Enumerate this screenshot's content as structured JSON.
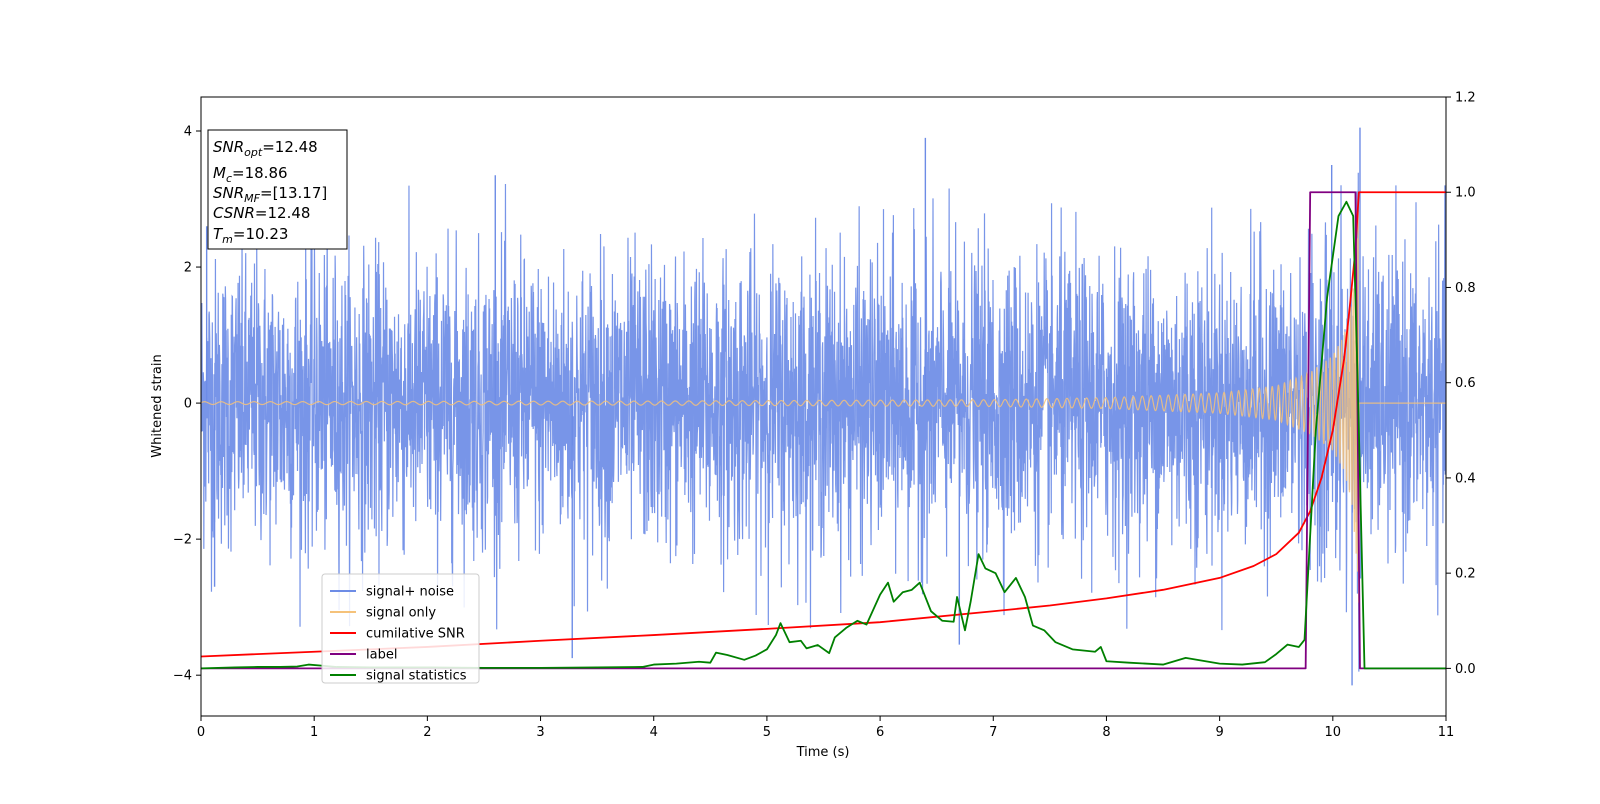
{
  "chart_data": {
    "type": "line",
    "title": "",
    "xlabel": "Time (s)",
    "ylabel": "Whitened strain",
    "xlim": [
      0,
      11
    ],
    "ylim": [
      -4.6,
      4.5
    ],
    "ylim_right": [
      -0.1,
      1.2
    ],
    "xticks": [
      "0",
      "1",
      "2",
      "3",
      "4",
      "5",
      "6",
      "7",
      "8",
      "9",
      "10",
      "11"
    ],
    "yticks": [
      "−4",
      "−2",
      "0",
      "2",
      "4"
    ],
    "yticks_right": [
      "0.0",
      "0.2",
      "0.4",
      "0.6",
      "0.8",
      "1.0",
      "1.2"
    ],
    "grid": false,
    "legend_position": "lower-left",
    "colors": {
      "signal_noise": "#6d8ce6",
      "signal_only": "#f5c27a",
      "cumulative_snr": "#ff0000",
      "label": "#800080",
      "signal_statistics": "#008000"
    },
    "legend": [
      {
        "label": "signal+ noise",
        "color": "#6d8ce6"
      },
      {
        "label": "signal only",
        "color": "#f5c27a"
      },
      {
        "label": "cumilative SNR",
        "color": "#ff0000"
      },
      {
        "label": "label",
        "color": "#800080"
      },
      {
        "label": "signal statistics",
        "color": "#008000"
      }
    ],
    "info_box": {
      "snr_opt": {
        "main": "SNR",
        "sub": "opt",
        "value": "=12.48"
      },
      "mc": {
        "main": "M",
        "sub": "c",
        "value": "=18.86"
      },
      "snr_mf": {
        "main": "SNR",
        "sub": "MF",
        "value": "=[13.17]"
      },
      "csnr": {
        "main": "CSNR",
        "sub": "",
        "value": "=12.48"
      },
      "tm": {
        "main": "T",
        "sub": "m",
        "value": "=10.23"
      }
    },
    "series": [
      {
        "name": "signal+ noise",
        "axis": "left",
        "kind": "noise",
        "sigma": 1.0,
        "notable_spikes": [
          [
            0.05,
            2.6
          ],
          [
            0.12,
            -2.7
          ],
          [
            2.6,
            3.35
          ],
          [
            3.28,
            -3.75
          ],
          [
            6.4,
            3.9
          ],
          [
            6.7,
            -3.55
          ],
          [
            9.99,
            3.5
          ],
          [
            10.17,
            -4.15
          ],
          [
            10.24,
            4.05
          ]
        ]
      },
      {
        "name": "signal only",
        "axis": "left",
        "kind": "chirp",
        "merger_time": 10.23,
        "envelope": [
          [
            0,
            0.02
          ],
          [
            4,
            0.03
          ],
          [
            7,
            0.05
          ],
          [
            8,
            0.08
          ],
          [
            9,
            0.15
          ],
          [
            9.5,
            0.25
          ],
          [
            9.8,
            0.45
          ],
          [
            10.0,
            0.7
          ],
          [
            10.1,
            1.0
          ],
          [
            10.17,
            1.5
          ],
          [
            10.21,
            2.3
          ],
          [
            10.23,
            3.0
          ]
        ]
      },
      {
        "name": "cumilative SNR",
        "axis": "right",
        "points": [
          [
            0,
            0.025
          ],
          [
            1,
            0.035
          ],
          [
            2,
            0.045
          ],
          [
            3,
            0.058
          ],
          [
            4,
            0.07
          ],
          [
            5,
            0.083
          ],
          [
            6,
            0.097
          ],
          [
            7,
            0.12
          ],
          [
            7.5,
            0.132
          ],
          [
            8,
            0.147
          ],
          [
            8.5,
            0.165
          ],
          [
            9,
            0.19
          ],
          [
            9.3,
            0.215
          ],
          [
            9.5,
            0.24
          ],
          [
            9.7,
            0.285
          ],
          [
            9.8,
            0.33
          ],
          [
            9.9,
            0.4
          ],
          [
            10.0,
            0.5
          ],
          [
            10.1,
            0.65
          ],
          [
            10.15,
            0.76
          ],
          [
            10.2,
            0.88
          ],
          [
            10.23,
            1.0
          ],
          [
            11,
            1.0
          ]
        ]
      },
      {
        "name": "label",
        "axis": "right",
        "points": [
          [
            0,
            0.0
          ],
          [
            9.76,
            0.0
          ],
          [
            9.8,
            1.0
          ],
          [
            10.2,
            1.0
          ],
          [
            10.24,
            0.0
          ],
          [
            11,
            0.0
          ]
        ]
      },
      {
        "name": "signal statistics",
        "axis": "right",
        "points": [
          [
            0,
            0.0
          ],
          [
            0.3,
            0.002
          ],
          [
            0.5,
            0.003
          ],
          [
            0.7,
            0.003
          ],
          [
            0.85,
            0.004
          ],
          [
            0.95,
            0.008
          ],
          [
            1.05,
            0.006
          ],
          [
            1.2,
            0.003
          ],
          [
            1.5,
            0.002
          ],
          [
            2,
            0.002
          ],
          [
            2.5,
            0.001
          ],
          [
            3,
            0.001
          ],
          [
            3.5,
            0.002
          ],
          [
            3.9,
            0.003
          ],
          [
            4.0,
            0.008
          ],
          [
            4.2,
            0.01
          ],
          [
            4.4,
            0.014
          ],
          [
            4.5,
            0.012
          ],
          [
            4.55,
            0.033
          ],
          [
            4.65,
            0.028
          ],
          [
            4.8,
            0.018
          ],
          [
            4.9,
            0.027
          ],
          [
            5.0,
            0.04
          ],
          [
            5.08,
            0.07
          ],
          [
            5.12,
            0.095
          ],
          [
            5.2,
            0.055
          ],
          [
            5.3,
            0.058
          ],
          [
            5.35,
            0.042
          ],
          [
            5.45,
            0.049
          ],
          [
            5.55,
            0.032
          ],
          [
            5.6,
            0.065
          ],
          [
            5.7,
            0.085
          ],
          [
            5.8,
            0.1
          ],
          [
            5.88,
            0.092
          ],
          [
            6.0,
            0.155
          ],
          [
            6.07,
            0.18
          ],
          [
            6.12,
            0.14
          ],
          [
            6.2,
            0.16
          ],
          [
            6.28,
            0.165
          ],
          [
            6.35,
            0.18
          ],
          [
            6.45,
            0.12
          ],
          [
            6.55,
            0.1
          ],
          [
            6.65,
            0.098
          ],
          [
            6.68,
            0.15
          ],
          [
            6.75,
            0.08
          ],
          [
            6.8,
            0.14
          ],
          [
            6.87,
            0.24
          ],
          [
            6.93,
            0.21
          ],
          [
            7.02,
            0.2
          ],
          [
            7.1,
            0.16
          ],
          [
            7.2,
            0.19
          ],
          [
            7.28,
            0.15
          ],
          [
            7.35,
            0.09
          ],
          [
            7.45,
            0.08
          ],
          [
            7.55,
            0.055
          ],
          [
            7.7,
            0.04
          ],
          [
            7.9,
            0.035
          ],
          [
            7.95,
            0.045
          ],
          [
            8.0,
            0.015
          ],
          [
            8.2,
            0.012
          ],
          [
            8.5,
            0.008
          ],
          [
            8.7,
            0.022
          ],
          [
            9.0,
            0.01
          ],
          [
            9.2,
            0.008
          ],
          [
            9.4,
            0.013
          ],
          [
            9.5,
            0.03
          ],
          [
            9.6,
            0.05
          ],
          [
            9.7,
            0.045
          ],
          [
            9.75,
            0.06
          ],
          [
            9.85,
            0.5
          ],
          [
            9.95,
            0.78
          ],
          [
            10.05,
            0.95
          ],
          [
            10.12,
            0.98
          ],
          [
            10.18,
            0.95
          ],
          [
            10.22,
            0.6
          ],
          [
            10.28,
            0.0
          ],
          [
            11,
            0.0
          ]
        ]
      }
    ]
  }
}
